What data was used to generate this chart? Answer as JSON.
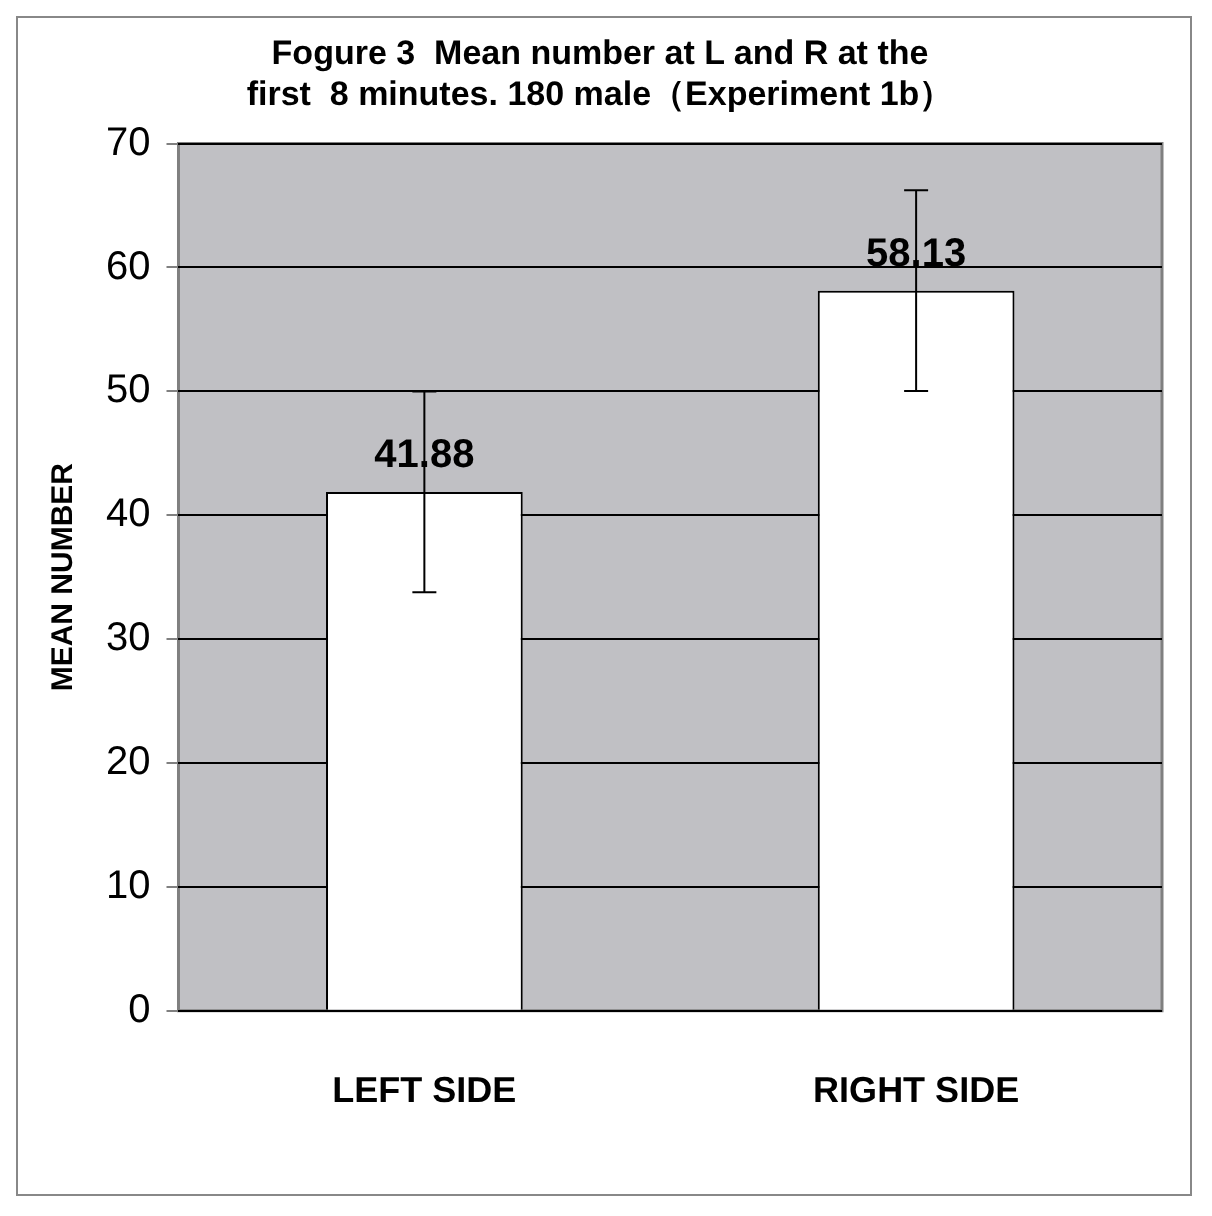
{
  "chart_data": {
    "type": "bar",
    "title": "Fogure 3  Mean number at L and R at the\nfirst  8 minutes. 180 male（Experiment 1b）",
    "ylabel": "MEAN NUMBER",
    "categories": [
      "LEFT SIDE",
      "RIGHT SIDE"
    ],
    "values": [
      41.88,
      58.13
    ],
    "errors": [
      8.1,
      8.1
    ],
    "color": "#ffffff",
    "ylim": [
      0,
      70
    ],
    "yticks": [
      0,
      10,
      20,
      30,
      40,
      50,
      60,
      70
    ],
    "grid": "y",
    "data_labels": true
  }
}
